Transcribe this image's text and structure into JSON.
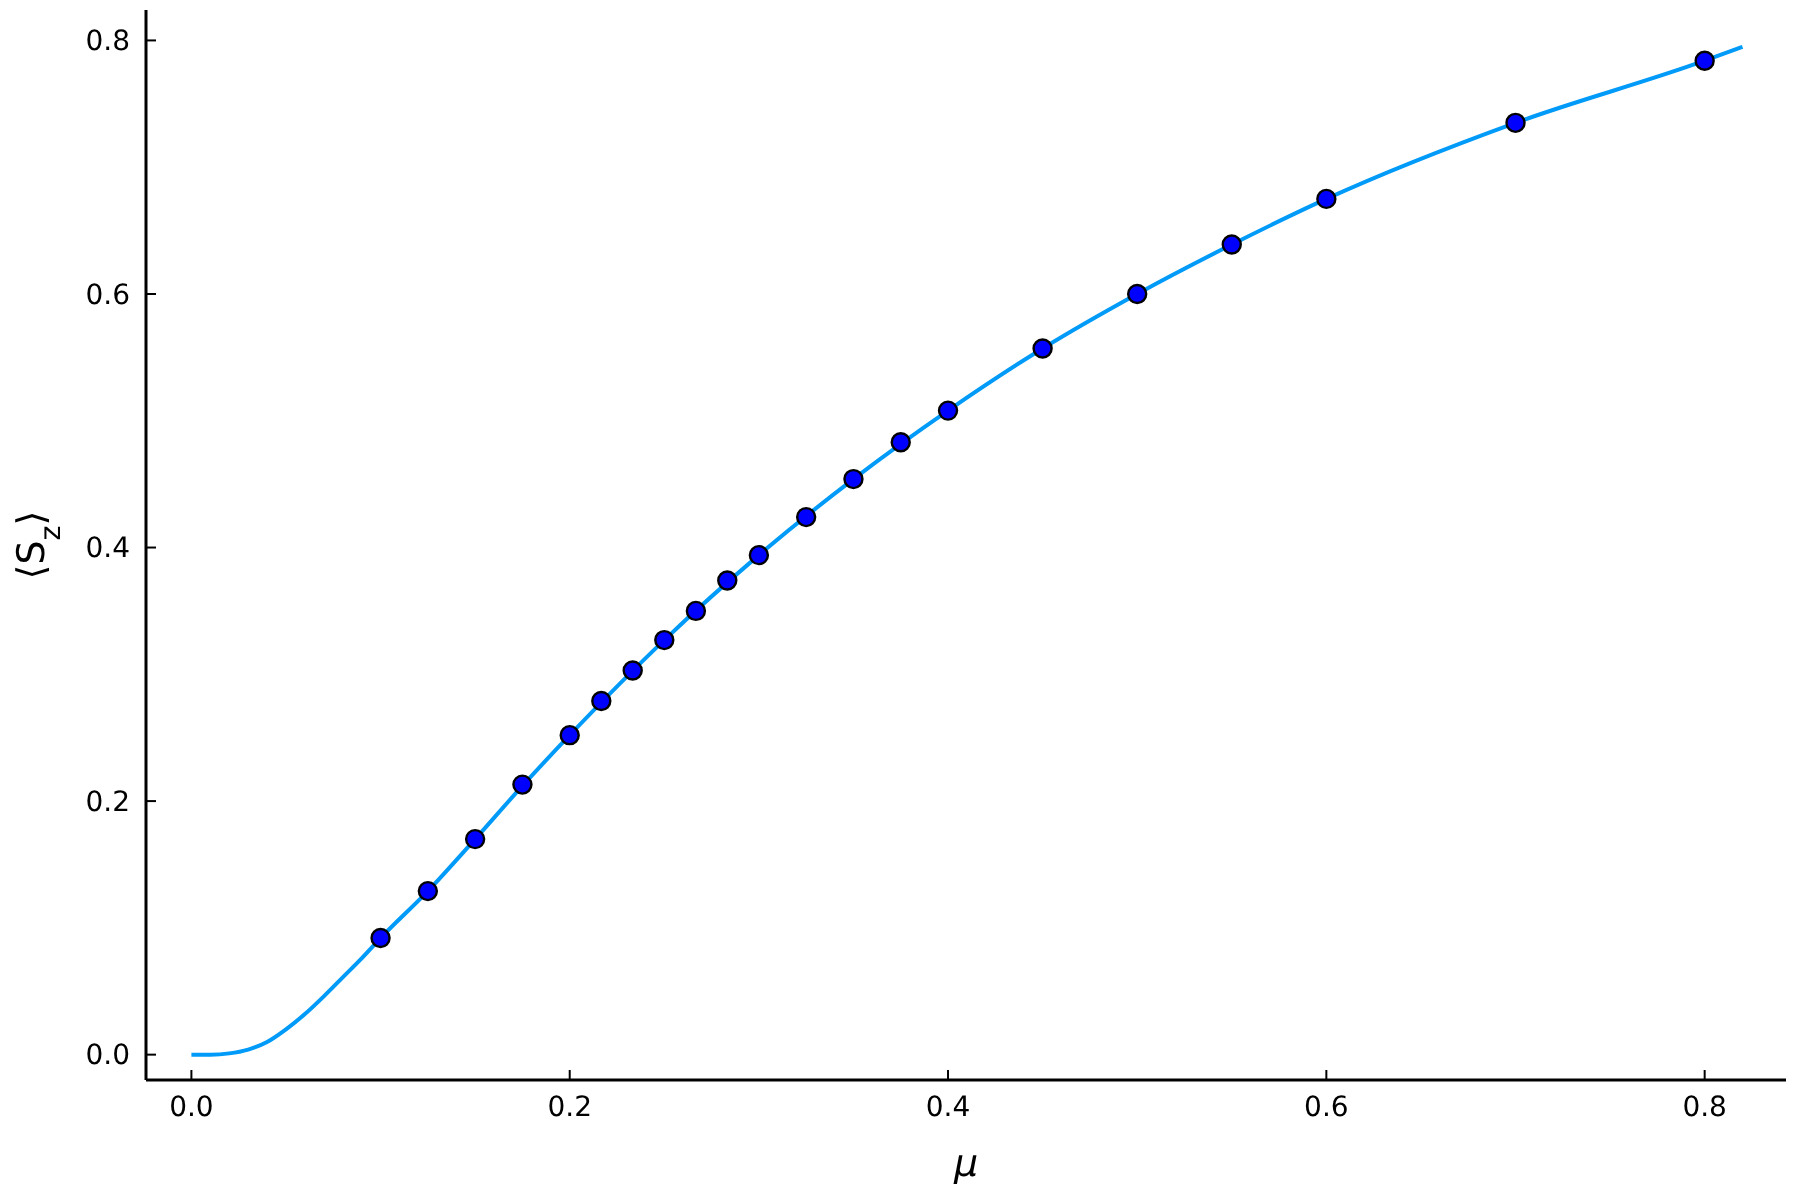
{
  "chart_data": {
    "type": "line",
    "xlabel": "μ",
    "ylabel": "⟨S$_{z}$⟩",
    "xlim": [
      -0.024,
      0.843
    ],
    "ylim": [
      -0.02,
      0.824
    ],
    "xticks": [
      {
        "value": 0,
        "label": "0.0"
      },
      {
        "value": 0.2,
        "label": "0.2"
      },
      {
        "value": 0.4,
        "label": "0.4"
      },
      {
        "value": 0.6,
        "label": "0.6"
      },
      {
        "value": 0.8,
        "label": "0.8"
      }
    ],
    "yticks": [
      {
        "value": 0,
        "label": "0.0"
      },
      {
        "value": 0.2,
        "label": "0.2"
      },
      {
        "value": 0.4,
        "label": "0.4"
      },
      {
        "value": 0.6,
        "label": "0.6"
      },
      {
        "value": 0.8,
        "label": "0.8"
      }
    ],
    "series": [
      {
        "color": "#009af9",
        "marker": "none",
        "x": [
          0,
          0.01,
          0.02,
          0.03,
          0.04,
          0.05,
          0.06,
          0.07,
          0.08,
          0.09,
          0.1,
          0.125,
          0.15,
          0.175,
          0.2,
          0.25,
          0.3,
          0.35,
          0.4,
          0.45,
          0.5,
          0.55,
          0.6,
          0.7,
          0.8,
          0.82
        ],
        "values": [
          0,
          0,
          0.001,
          0.004,
          0.01,
          0.02,
          0.032,
          0.046,
          0.061,
          0.076,
          0.092,
          0.129,
          0.17,
          0.212,
          0.252,
          0.327,
          0.394,
          0.454,
          0.508,
          0.557,
          0.6,
          0.639,
          0.675,
          0.735,
          0.784,
          0.795
        ]
      },
      {
        "type": "scatter",
        "color": "#0000ff",
        "marker": "circle",
        "x": [
          0.1,
          0.125,
          0.15,
          0.175,
          0.2,
          0.2167,
          0.2333,
          0.25,
          0.2667,
          0.2833,
          0.3,
          0.325,
          0.35,
          0.375,
          0.4,
          0.45,
          0.5,
          0.55,
          0.6,
          0.7,
          0.8
        ],
        "values": [
          0.092,
          0.129,
          0.17,
          0.213,
          0.252,
          0.279,
          0.303,
          0.327,
          0.35,
          0.374,
          0.394,
          0.424,
          0.454,
          0.483,
          0.508,
          0.557,
          0.6,
          0.639,
          0.675,
          0.735,
          0.784
        ]
      }
    ]
  }
}
